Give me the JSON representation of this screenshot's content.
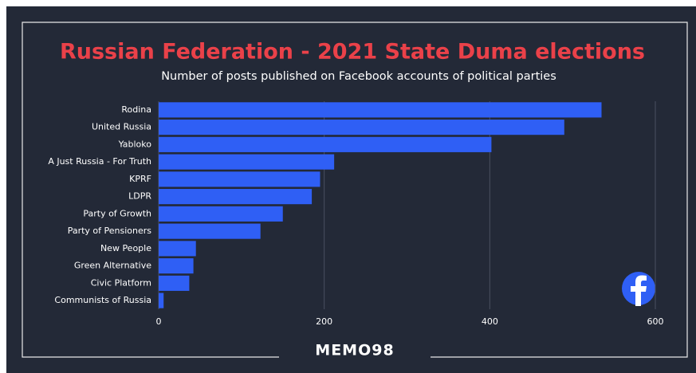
{
  "chart_data": {
    "type": "bar",
    "orientation": "horizontal",
    "title": "Russian Federation - 2021 State Duma elections",
    "subtitle": "Number of posts published on Facebook accounts of political parties",
    "categories": [
      "Rodina",
      "United Russia",
      "Yabloko",
      "A Just Russia - For Truth",
      "KPRF",
      "LDPR",
      "Party of Growth",
      "Party of Pensioners",
      "New People",
      "Green Alternative",
      "Civic Platform",
      "Communists of Russia"
    ],
    "values": [
      535,
      490,
      402,
      212,
      195,
      185,
      150,
      123,
      45,
      42,
      37,
      6
    ],
    "color": "#2f5ff5",
    "xlim": [
      0,
      600
    ],
    "xticks": [
      0,
      200,
      400,
      600
    ],
    "grid": true,
    "logo": "MEMO98"
  }
}
